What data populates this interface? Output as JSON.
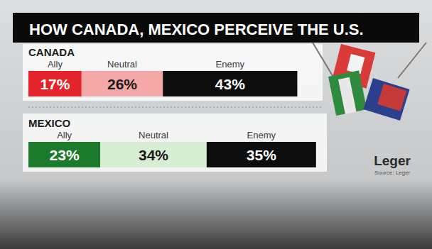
{
  "chart_data": {
    "type": "bar",
    "title": "HOW CANADA, MEXICO PERCEIVE THE U.S.",
    "orientation": "horizontal",
    "stacked": true,
    "data_labels": true,
    "tick_labels": false,
    "grid": false,
    "categories": [
      "CANADA",
      "MEXICO"
    ],
    "series": [
      {
        "name": "Ally",
        "colors": [
          "#e3242b",
          "#1b7a2c"
        ],
        "values": [
          17,
          23
        ],
        "value_labels": [
          "17%",
          "23%"
        ]
      },
      {
        "name": "Neutral",
        "colors": [
          "#f5a8a8",
          "#d6eed2"
        ],
        "values": [
          26,
          34
        ],
        "value_labels": [
          "26%",
          "34%"
        ]
      },
      {
        "name": "Enemy",
        "colors": [
          "#0d0d0d",
          "#0d0d0d"
        ],
        "values": [
          43,
          35
        ],
        "value_labels": [
          "43%",
          "35%"
        ]
      }
    ],
    "xlim": [
      0,
      100
    ],
    "annotations": [
      "Leger",
      "Source: Leger"
    ]
  }
}
